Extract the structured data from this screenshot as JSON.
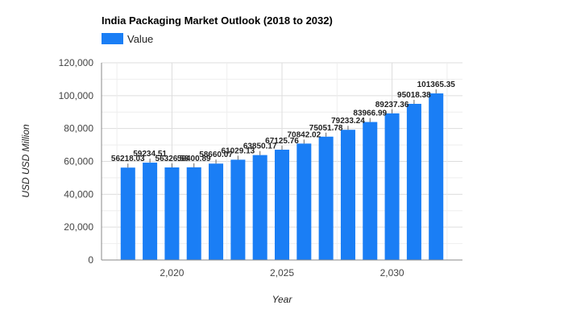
{
  "chart_data": {
    "type": "bar",
    "title": "India Packaging Market Outlook (2018 to 2032)",
    "xlabel": "Year",
    "ylabel": "USD USD Million",
    "legend": {
      "position": "top-left",
      "entries": [
        "Value"
      ]
    },
    "grid": true,
    "xlim": [
      2016.8,
      2033.2
    ],
    "ylim": [
      0,
      120000
    ],
    "x_ticks": [
      2020,
      2025,
      2030
    ],
    "x_tick_labels": [
      "2,020",
      "2,025",
      "2,030"
    ],
    "y_ticks": [
      0,
      20000,
      40000,
      60000,
      80000,
      100000,
      120000
    ],
    "y_tick_labels": [
      "0",
      "20,000",
      "40,000",
      "60,000",
      "80,000",
      "100,000",
      "120,000"
    ],
    "colors": {
      "bar": "#1a7ef5",
      "grid": "#dddddd",
      "axis": "#888888"
    },
    "series": [
      {
        "name": "Value",
        "x": [
          2018,
          2019,
          2020,
          2021,
          2022,
          2023,
          2024,
          2025,
          2026,
          2027,
          2028,
          2029,
          2030,
          2031,
          2032
        ],
        "values": [
          56218.03,
          59234.51,
          56326.58,
          56400.89,
          58660.07,
          61029.13,
          63850.17,
          67125.76,
          70842.02,
          75051.78,
          79233.24,
          83966.99,
          89237.36,
          95018.38,
          101365.35
        ],
        "labels": [
          "56218.03",
          "59234.51",
          "56326.58",
          "56400.89",
          "58660.07",
          "61029.13",
          "63850.17",
          "67125.76",
          "70842.02",
          "75051.78",
          "79233.24",
          "83966.99",
          "89237.36",
          "95018.38",
          "101365.35"
        ]
      }
    ]
  }
}
